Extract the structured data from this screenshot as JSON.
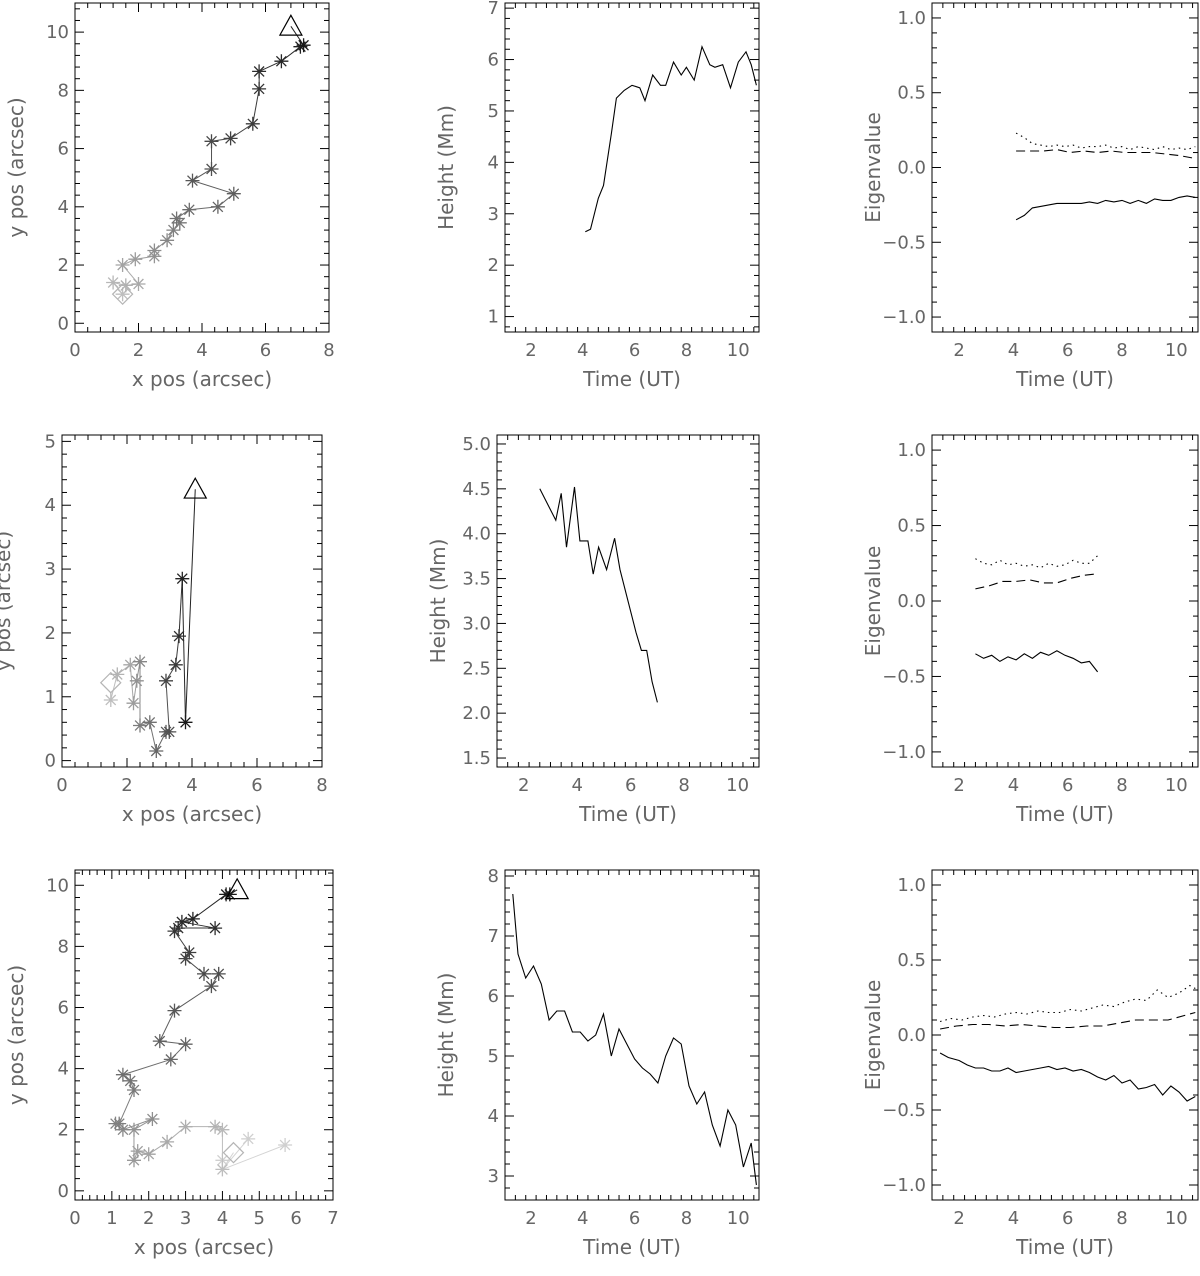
{
  "chart_data": [
    {
      "type": "scatter",
      "xlabel": "x pos (arcsec)",
      "ylabel": "y pos (arcsec)",
      "xlim": [
        0,
        8
      ],
      "ylim": [
        -0.3,
        11
      ],
      "xticks": [
        0,
        2,
        4,
        6,
        8
      ],
      "yticks": [
        0,
        2,
        4,
        6,
        8,
        10
      ],
      "series": [
        {
          "marker": "asterisk-path",
          "points": [
            [
              1.5,
              1.0
            ],
            [
              1.2,
              1.4
            ],
            [
              1.6,
              1.3
            ],
            [
              2.0,
              1.35
            ],
            [
              1.5,
              2.0
            ],
            [
              1.9,
              2.2
            ],
            [
              2.5,
              2.3
            ],
            [
              2.5,
              2.5
            ],
            [
              2.9,
              2.85
            ],
            [
              3.1,
              3.2
            ],
            [
              3.3,
              3.45
            ],
            [
              3.2,
              3.6
            ],
            [
              3.6,
              3.9
            ],
            [
              4.5,
              4.0
            ],
            [
              5.0,
              4.45
            ],
            [
              3.7,
              4.9
            ],
            [
              4.3,
              5.3
            ],
            [
              4.3,
              6.25
            ],
            [
              4.9,
              6.35
            ],
            [
              5.6,
              6.85
            ],
            [
              5.8,
              8.05
            ],
            [
              5.8,
              8.65
            ],
            [
              6.5,
              9.0
            ],
            [
              7.1,
              9.5
            ],
            [
              7.2,
              9.55
            ]
          ],
          "start_marker": "diamond",
          "start": [
            1.5,
            1.0
          ],
          "end_marker": "triangle",
          "end": [
            6.8,
            10.2
          ]
        }
      ]
    },
    {
      "type": "line",
      "xlabel": "Time (UT)",
      "ylabel": "Height (Mm)",
      "xlim": [
        1,
        10.8
      ],
      "ylim": [
        0.7,
        7.1
      ],
      "xticks": [
        2,
        4,
        6,
        8,
        10
      ],
      "yticks": [
        1,
        2,
        3,
        4,
        5,
        6,
        7
      ],
      "series": [
        {
          "style": "solid",
          "x": [
            4.1,
            4.3,
            4.6,
            4.8,
            5.1,
            5.3,
            5.6,
            5.9,
            6.2,
            6.4,
            6.7,
            7.0,
            7.2,
            7.5,
            7.8,
            8.0,
            8.3,
            8.6,
            8.9,
            9.1,
            9.4,
            9.7,
            10.0,
            10.3,
            10.5,
            10.7
          ],
          "y": [
            2.65,
            2.7,
            3.3,
            3.55,
            4.55,
            5.25,
            5.4,
            5.5,
            5.45,
            5.2,
            5.7,
            5.5,
            5.5,
            5.95,
            5.7,
            5.85,
            5.6,
            6.25,
            5.9,
            5.85,
            5.9,
            5.45,
            5.95,
            6.15,
            5.9,
            5.5
          ]
        }
      ]
    },
    {
      "type": "line",
      "xlabel": "Time (UT)",
      "ylabel": "Eigenvalue",
      "xlim": [
        1,
        10.8
      ],
      "ylim": [
        -1.1,
        1.1
      ],
      "xticks": [
        2,
        4,
        6,
        8,
        10
      ],
      "yticks": [
        -1.0,
        -0.5,
        0.0,
        0.5,
        1.0
      ],
      "series": [
        {
          "style": "dotted",
          "x": [
            4.1,
            4.4,
            4.7,
            5.0,
            5.3,
            5.6,
            5.9,
            6.2,
            6.5,
            6.8,
            7.1,
            7.4,
            7.7,
            8.0,
            8.3,
            8.6,
            8.9,
            9.2,
            9.5,
            9.8,
            10.1,
            10.4,
            10.7
          ],
          "y": [
            0.23,
            0.2,
            0.16,
            0.15,
            0.14,
            0.15,
            0.14,
            0.15,
            0.13,
            0.14,
            0.14,
            0.15,
            0.13,
            0.14,
            0.12,
            0.14,
            0.13,
            0.12,
            0.14,
            0.12,
            0.13,
            0.12,
            0.14
          ]
        },
        {
          "style": "dashed",
          "x": [
            4.1,
            4.6,
            5.1,
            5.6,
            6.1,
            6.6,
            7.1,
            7.6,
            8.1,
            8.6,
            9.1,
            9.6,
            10.1,
            10.7
          ],
          "y": [
            0.11,
            0.11,
            0.11,
            0.12,
            0.1,
            0.11,
            0.1,
            0.11,
            0.1,
            0.1,
            0.1,
            0.09,
            0.08,
            0.06
          ]
        },
        {
          "style": "solid",
          "x": [
            4.1,
            4.4,
            4.7,
            5.0,
            5.3,
            5.6,
            5.9,
            6.2,
            6.5,
            6.8,
            7.1,
            7.4,
            7.7,
            8.0,
            8.3,
            8.6,
            8.9,
            9.2,
            9.5,
            9.8,
            10.1,
            10.4,
            10.7
          ],
          "y": [
            -0.35,
            -0.32,
            -0.27,
            -0.26,
            -0.25,
            -0.24,
            -0.24,
            -0.24,
            -0.24,
            -0.23,
            -0.24,
            -0.22,
            -0.23,
            -0.22,
            -0.24,
            -0.22,
            -0.24,
            -0.21,
            -0.22,
            -0.22,
            -0.2,
            -0.19,
            -0.2
          ]
        }
      ]
    },
    {
      "type": "scatter",
      "xlabel": "x pos (arcsec)",
      "ylabel": "y pos (arcsec)",
      "xlim": [
        0,
        8
      ],
      "ylim": [
        -0.1,
        5.1
      ],
      "xticks": [
        0,
        2,
        4,
        6,
        8
      ],
      "yticks": [
        0,
        1,
        2,
        3,
        4,
        5
      ],
      "series": [
        {
          "marker": "asterisk-path",
          "points": [
            [
              1.5,
              0.95
            ],
            [
              1.7,
              1.35
            ],
            [
              2.1,
              1.5
            ],
            [
              2.2,
              0.9
            ],
            [
              2.3,
              1.25
            ],
            [
              2.4,
              1.55
            ],
            [
              2.4,
              0.55
            ],
            [
              2.7,
              0.6
            ],
            [
              2.9,
              0.15
            ],
            [
              3.2,
              0.45
            ],
            [
              3.3,
              0.45
            ],
            [
              3.2,
              1.25
            ],
            [
              3.5,
              1.5
            ],
            [
              3.6,
              1.95
            ],
            [
              3.7,
              2.85
            ],
            [
              3.8,
              0.6
            ]
          ],
          "start_marker": "diamond",
          "start": [
            1.5,
            1.22
          ],
          "end_marker": "triangle",
          "end": [
            4.1,
            4.25
          ]
        }
      ]
    },
    {
      "type": "line",
      "xlabel": "Time (UT)",
      "ylabel": "Height (Mm)",
      "xlim": [
        1,
        10.8
      ],
      "ylim": [
        1.4,
        5.1
      ],
      "xticks": [
        2,
        4,
        6,
        8,
        10
      ],
      "yticks": [
        1.5,
        2.0,
        2.5,
        3.0,
        3.5,
        4.0,
        4.5,
        5.0
      ],
      "series": [
        {
          "style": "solid",
          "x": [
            2.6,
            3.2,
            3.4,
            3.6,
            3.9,
            4.1,
            4.4,
            4.6,
            4.8,
            5.1,
            5.4,
            5.6,
            5.9,
            6.2,
            6.4,
            6.6,
            6.8,
            7.0
          ],
          "y": [
            4.5,
            4.15,
            4.45,
            3.85,
            4.52,
            3.92,
            3.92,
            3.55,
            3.85,
            3.6,
            3.95,
            3.6,
            3.25,
            2.9,
            2.7,
            2.7,
            2.35,
            2.12
          ]
        }
      ]
    },
    {
      "type": "line",
      "xlabel": "Time (UT)",
      "ylabel": "Eigenvalue",
      "xlim": [
        1,
        10.8
      ],
      "ylim": [
        -1.1,
        1.1
      ],
      "xticks": [
        2,
        4,
        6,
        8,
        10
      ],
      "yticks": [
        -1.0,
        -0.5,
        0.0,
        0.5,
        1.0
      ],
      "series": [
        {
          "style": "dotted",
          "x": [
            2.6,
            2.9,
            3.2,
            3.5,
            3.8,
            4.1,
            4.4,
            4.7,
            5.0,
            5.3,
            5.6,
            5.9,
            6.2,
            6.5,
            6.8,
            7.1
          ],
          "y": [
            0.28,
            0.25,
            0.24,
            0.27,
            0.24,
            0.25,
            0.23,
            0.24,
            0.22,
            0.25,
            0.23,
            0.24,
            0.27,
            0.25,
            0.25,
            0.3
          ]
        },
        {
          "style": "dashed",
          "x": [
            2.6,
            3.1,
            3.6,
            4.1,
            4.6,
            5.1,
            5.6,
            6.1,
            6.6,
            7.1
          ],
          "y": [
            0.08,
            0.1,
            0.13,
            0.13,
            0.14,
            0.12,
            0.12,
            0.15,
            0.17,
            0.18
          ]
        },
        {
          "style": "solid",
          "x": [
            2.6,
            2.9,
            3.2,
            3.5,
            3.8,
            4.1,
            4.4,
            4.7,
            5.0,
            5.3,
            5.6,
            5.9,
            6.2,
            6.5,
            6.8,
            7.1
          ],
          "y": [
            -0.35,
            -0.38,
            -0.36,
            -0.4,
            -0.37,
            -0.39,
            -0.35,
            -0.38,
            -0.34,
            -0.36,
            -0.33,
            -0.36,
            -0.38,
            -0.41,
            -0.4,
            -0.47
          ]
        }
      ]
    },
    {
      "type": "scatter",
      "xlabel": "x pos (arcsec)",
      "ylabel": "y pos (arcsec)",
      "xlim": [
        0,
        7
      ],
      "ylim": [
        -0.3,
        10.5
      ],
      "xticks": [
        0,
        1,
        2,
        3,
        4,
        5,
        6,
        7
      ],
      "yticks": [
        0,
        2,
        4,
        6,
        8,
        10
      ],
      "series": [
        {
          "marker": "asterisk-path",
          "points": [
            [
              4.0,
              0.7
            ],
            [
              4.0,
              2.0
            ],
            [
              3.8,
              2.1
            ],
            [
              3.0,
              2.1
            ],
            [
              2.5,
              1.6
            ],
            [
              2.0,
              1.2
            ],
            [
              1.7,
              1.3
            ],
            [
              1.6,
              1.0
            ],
            [
              1.6,
              2.0
            ],
            [
              2.1,
              2.35
            ],
            [
              1.3,
              2.0
            ],
            [
              1.1,
              2.2
            ],
            [
              1.2,
              2.2
            ],
            [
              1.6,
              3.3
            ],
            [
              1.5,
              3.6
            ],
            [
              1.3,
              3.8
            ],
            [
              2.6,
              4.3
            ],
            [
              3.0,
              4.8
            ],
            [
              2.3,
              4.9
            ],
            [
              2.7,
              5.9
            ],
            [
              3.7,
              6.7
            ],
            [
              3.9,
              7.1
            ],
            [
              3.5,
              7.1
            ],
            [
              3.0,
              7.6
            ],
            [
              3.1,
              7.8
            ],
            [
              2.7,
              8.5
            ],
            [
              2.8,
              8.6
            ],
            [
              3.8,
              8.6
            ],
            [
              2.9,
              8.8
            ],
            [
              3.2,
              8.9
            ],
            [
              4.1,
              9.7
            ],
            [
              4.2,
              9.7
            ]
          ],
          "start_marker": "diamond",
          "start": [
            4.3,
            1.25
          ],
          "start_extra_points": [
            [
              4.7,
              1.7
            ],
            [
              5.7,
              1.5
            ],
            [
              4.0,
              1.0
            ]
          ],
          "end_marker": "triangle",
          "end": [
            4.4,
            9.85
          ]
        }
      ]
    },
    {
      "type": "line",
      "xlabel": "Time (UT)",
      "ylabel": "Height (Mm)",
      "xlim": [
        1,
        10.8
      ],
      "ylim": [
        2.6,
        8.1
      ],
      "xticks": [
        2,
        4,
        6,
        8,
        10
      ],
      "yticks": [
        3,
        4,
        5,
        6,
        7,
        8
      ],
      "series": [
        {
          "style": "solid",
          "x": [
            1.3,
            1.5,
            1.8,
            2.1,
            2.4,
            2.7,
            3.0,
            3.3,
            3.6,
            3.9,
            4.2,
            4.5,
            4.8,
            5.1,
            5.4,
            5.7,
            6.0,
            6.3,
            6.6,
            6.9,
            7.2,
            7.5,
            7.8,
            8.1,
            8.4,
            8.7,
            9.0,
            9.3,
            9.6,
            9.9,
            10.2,
            10.5,
            10.7
          ],
          "y": [
            7.7,
            6.7,
            6.3,
            6.5,
            6.2,
            5.6,
            5.75,
            5.75,
            5.4,
            5.4,
            5.25,
            5.35,
            5.7,
            5.0,
            5.45,
            5.2,
            4.95,
            4.8,
            4.7,
            4.55,
            5.0,
            5.3,
            5.2,
            4.5,
            4.2,
            4.4,
            3.85,
            3.5,
            4.1,
            3.85,
            3.15,
            3.55,
            2.85
          ]
        }
      ]
    },
    {
      "type": "line",
      "xlabel": "Time (UT)",
      "ylabel": "Eigenvalue",
      "xlim": [
        1,
        10.8
      ],
      "ylim": [
        -1.1,
        1.1
      ],
      "xticks": [
        2,
        4,
        6,
        8,
        10
      ],
      "yticks": [
        -1.0,
        -0.5,
        0.0,
        0.5,
        1.0
      ],
      "series": [
        {
          "style": "dotted",
          "x": [
            1.3,
            1.7,
            2.1,
            2.5,
            2.9,
            3.3,
            3.7,
            4.1,
            4.5,
            4.9,
            5.3,
            5.7,
            6.1,
            6.5,
            6.9,
            7.3,
            7.7,
            8.1,
            8.5,
            8.9,
            9.3,
            9.7,
            10.1,
            10.5,
            10.7
          ],
          "y": [
            0.09,
            0.11,
            0.1,
            0.12,
            0.13,
            0.12,
            0.14,
            0.15,
            0.14,
            0.16,
            0.15,
            0.15,
            0.17,
            0.16,
            0.18,
            0.2,
            0.19,
            0.22,
            0.24,
            0.23,
            0.3,
            0.25,
            0.28,
            0.33,
            0.31
          ]
        },
        {
          "style": "dashed",
          "x": [
            1.3,
            1.9,
            2.5,
            3.1,
            3.7,
            4.3,
            4.9,
            5.5,
            6.1,
            6.7,
            7.3,
            7.9,
            8.5,
            9.1,
            9.7,
            10.3,
            10.7
          ],
          "y": [
            0.04,
            0.06,
            0.07,
            0.07,
            0.06,
            0.07,
            0.06,
            0.05,
            0.05,
            0.06,
            0.06,
            0.08,
            0.1,
            0.1,
            0.1,
            0.13,
            0.15
          ]
        },
        {
          "style": "solid",
          "x": [
            1.3,
            1.6,
            2.0,
            2.3,
            2.6,
            2.9,
            3.2,
            3.5,
            3.8,
            4.1,
            4.4,
            4.7,
            5.0,
            5.3,
            5.6,
            5.9,
            6.2,
            6.5,
            6.8,
            7.1,
            7.4,
            7.7,
            8.0,
            8.3,
            8.6,
            8.9,
            9.2,
            9.5,
            9.8,
            10.1,
            10.4,
            10.7
          ],
          "y": [
            -0.12,
            -0.15,
            -0.17,
            -0.2,
            -0.22,
            -0.22,
            -0.24,
            -0.24,
            -0.22,
            -0.25,
            -0.24,
            -0.23,
            -0.22,
            -0.21,
            -0.23,
            -0.22,
            -0.24,
            -0.23,
            -0.25,
            -0.28,
            -0.3,
            -0.27,
            -0.32,
            -0.3,
            -0.36,
            -0.35,
            -0.33,
            -0.4,
            -0.34,
            -0.38,
            -0.44,
            -0.41
          ]
        }
      ]
    }
  ]
}
